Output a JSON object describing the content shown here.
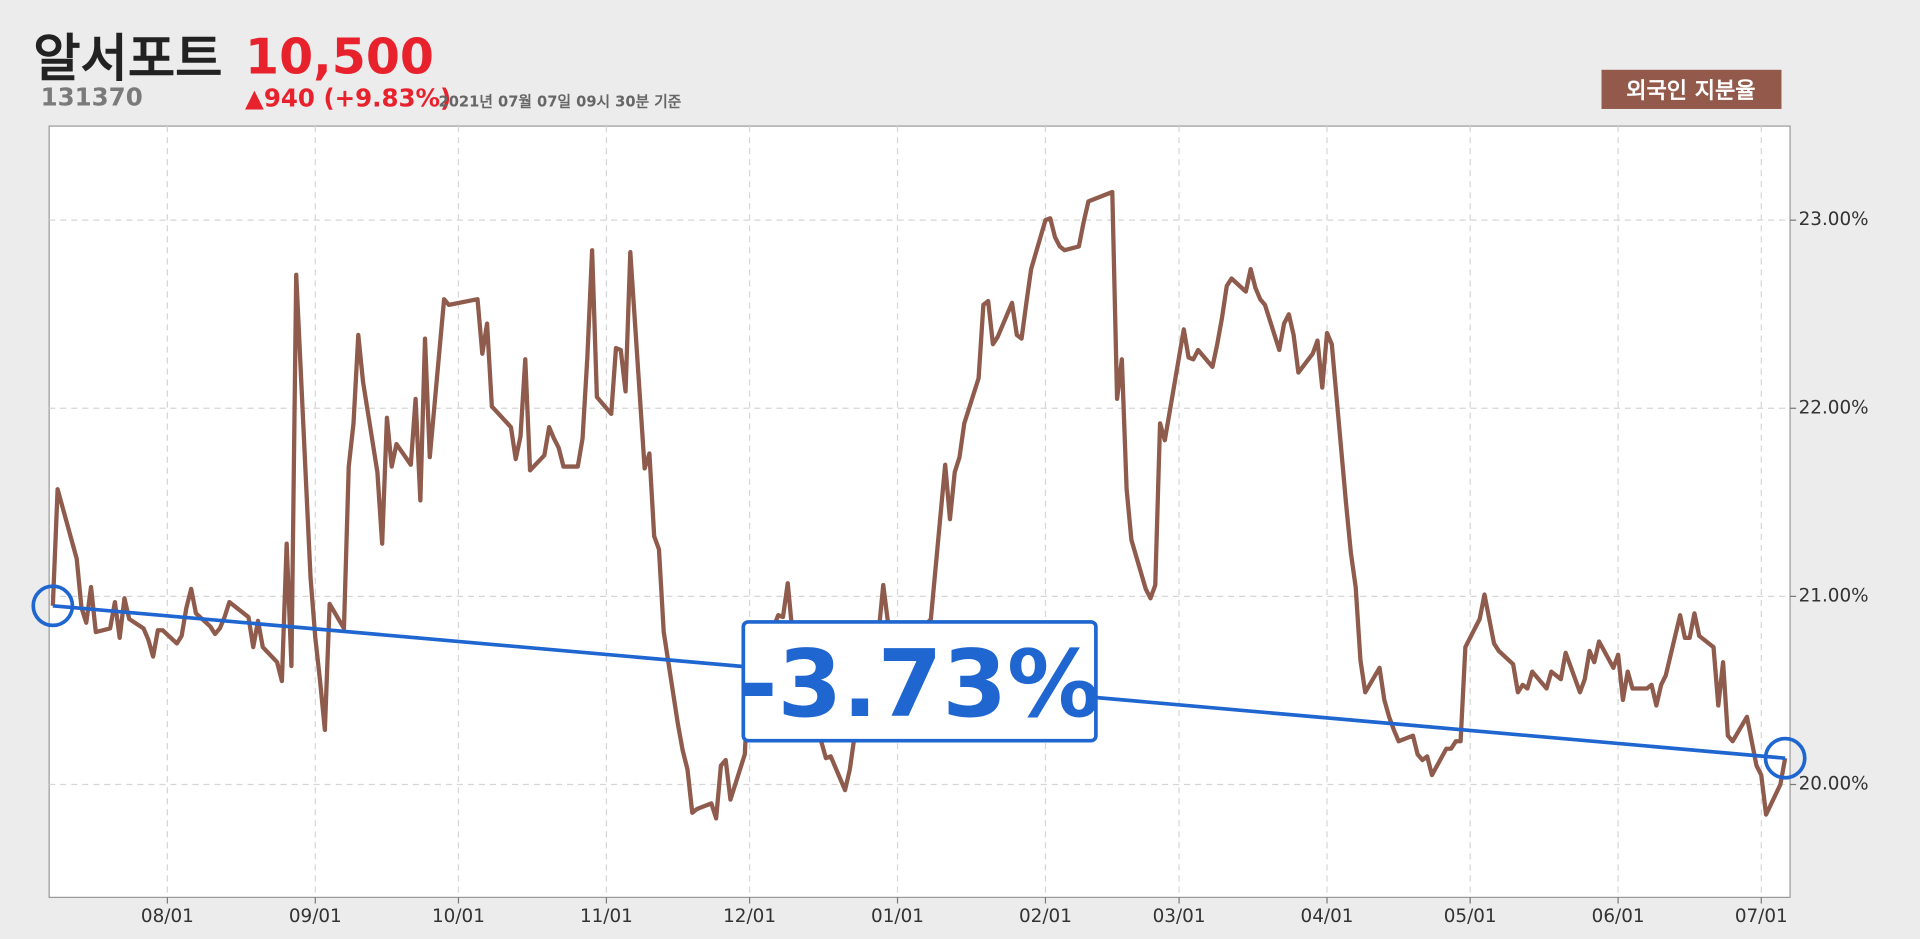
{
  "header": {
    "name": "알서포트",
    "price": "10,500",
    "code": "131370",
    "change": "▲940 (+9.83%)",
    "timestamp": "2021년 07월 07일 09시 30분 기준",
    "button": "외국인 지분율"
  },
  "chart_data": {
    "type": "line",
    "annotation": "-3.73%",
    "x": [
      "07/08",
      "07/09",
      "07/13",
      "07/14",
      "07/15",
      "07/16",
      "07/17",
      "07/20",
      "07/21",
      "07/22",
      "07/23",
      "07/24",
      "07/27",
      "07/28",
      "07/29",
      "07/30",
      "07/31",
      "08/03",
      "08/04",
      "08/05",
      "08/06",
      "08/07",
      "08/10",
      "08/11",
      "08/12",
      "08/13",
      "08/14",
      "08/18",
      "08/19",
      "08/20",
      "08/21",
      "08/24",
      "08/25",
      "08/26",
      "08/27",
      "08/28",
      "08/31",
      "09/01",
      "09/02",
      "09/03",
      "09/04",
      "09/07",
      "09/08",
      "09/09",
      "09/10",
      "09/11",
      "09/14",
      "09/15",
      "09/16",
      "09/17",
      "09/18",
      "09/21",
      "09/22",
      "09/23",
      "09/24",
      "09/25",
      "09/28",
      "09/29",
      "10/05",
      "10/06",
      "10/07",
      "10/08",
      "10/12",
      "10/13",
      "10/14",
      "10/15",
      "10/16",
      "10/19",
      "10/20",
      "10/21",
      "10/22",
      "10/23",
      "10/26",
      "10/27",
      "10/28",
      "10/29",
      "10/30",
      "11/02",
      "11/03",
      "11/04",
      "11/05",
      "11/06",
      "11/09",
      "11/10",
      "11/11",
      "11/12",
      "11/13",
      "11/16",
      "11/17",
      "11/18",
      "11/19",
      "11/20",
      "11/23",
      "11/24",
      "11/25",
      "11/26",
      "11/27",
      "11/30",
      "12/01",
      "12/02",
      "12/03",
      "12/04",
      "12/07",
      "12/08",
      "12/09",
      "12/10",
      "12/11",
      "12/14",
      "12/15",
      "12/16",
      "12/17",
      "12/18",
      "12/21",
      "12/22",
      "12/23",
      "12/24",
      "12/28",
      "12/29",
      "12/30",
      "01/04",
      "01/05",
      "01/06",
      "01/07",
      "01/08",
      "01/11",
      "01/12",
      "01/13",
      "01/14",
      "01/15",
      "01/18",
      "01/19",
      "01/20",
      "01/21",
      "01/22",
      "01/25",
      "01/26",
      "01/27",
      "01/28",
      "01/29",
      "02/01",
      "02/02",
      "02/03",
      "02/04",
      "02/05",
      "02/08",
      "02/09",
      "02/10",
      "02/15",
      "02/16",
      "02/17",
      "02/18",
      "02/19",
      "02/22",
      "02/23",
      "02/24",
      "02/25",
      "02/26",
      "03/02",
      "03/03",
      "03/04",
      "03/05",
      "03/08",
      "03/09",
      "03/10",
      "03/11",
      "03/12",
      "03/15",
      "03/16",
      "03/17",
      "03/18",
      "03/19",
      "03/22",
      "03/23",
      "03/24",
      "03/25",
      "03/26",
      "03/29",
      "03/30",
      "03/31",
      "04/01",
      "04/02",
      "04/05",
      "04/06",
      "04/07",
      "04/08",
      "04/09",
      "04/12",
      "04/13",
      "04/14",
      "04/15",
      "04/16",
      "04/19",
      "04/20",
      "04/21",
      "04/22",
      "04/23",
      "04/26",
      "04/27",
      "04/28",
      "04/29",
      "04/30",
      "05/03",
      "05/04",
      "05/06",
      "05/07",
      "05/10",
      "05/11",
      "05/12",
      "05/13",
      "05/14",
      "05/17",
      "05/18",
      "05/20",
      "05/21",
      "05/24",
      "05/25",
      "05/26",
      "05/27",
      "05/28",
      "05/31",
      "06/01",
      "06/02",
      "06/03",
      "06/04",
      "06/07",
      "06/08",
      "06/09",
      "06/10",
      "06/11",
      "06/14",
      "06/15",
      "06/16",
      "06/17",
      "06/18",
      "06/21",
      "06/22",
      "06/23",
      "06/24",
      "06/25",
      "06/28",
      "06/29",
      "06/30",
      "07/01",
      "07/02",
      "07/05",
      "07/06"
    ],
    "series": [
      {
        "color": "#8f5b4c",
        "values": [
          20.95,
          21.57,
          21.2,
          20.94,
          20.86,
          21.05,
          20.81,
          20.83,
          20.97,
          20.78,
          20.99,
          20.88,
          20.83,
          20.77,
          20.68,
          20.82,
          20.82,
          20.75,
          20.79,
          20.94,
          21.04,
          20.91,
          20.84,
          20.8,
          20.83,
          20.89,
          20.97,
          20.89,
          20.73,
          20.87,
          20.73,
          20.65,
          20.55,
          21.28,
          20.63,
          22.71,
          21.1,
          20.78,
          20.55,
          20.29,
          20.96,
          20.83,
          21.69,
          21.92,
          22.39,
          22.14,
          21.66,
          21.28,
          21.95,
          21.69,
          21.81,
          21.7,
          22.05,
          21.51,
          22.37,
          21.74,
          22.58,
          22.55,
          22.58,
          22.29,
          22.45,
          22.01,
          21.9,
          21.73,
          21.85,
          22.26,
          21.67,
          21.75,
          21.9,
          21.84,
          21.79,
          21.69,
          21.69,
          21.84,
          22.27,
          22.84,
          22.06,
          21.97,
          22.32,
          22.31,
          22.09,
          22.83,
          21.68,
          21.76,
          21.32,
          21.25,
          20.81,
          20.32,
          20.18,
          20.08,
          19.85,
          19.87,
          19.9,
          19.82,
          20.1,
          20.13,
          19.92,
          20.16,
          20.65,
          20.8,
          20.75,
          20.7,
          20.9,
          20.89,
          21.07,
          20.8,
          20.6,
          20.45,
          20.3,
          20.23,
          20.14,
          20.15,
          19.97,
          20.08,
          20.26,
          20.5,
          20.8,
          21.06,
          20.86,
          20.7,
          20.6,
          20.75,
          20.85,
          20.88,
          21.7,
          21.41,
          21.66,
          21.74,
          21.92,
          22.16,
          22.55,
          22.57,
          22.34,
          22.38,
          22.56,
          22.39,
          22.37,
          22.56,
          22.74,
          23.0,
          23.01,
          22.91,
          22.86,
          22.84,
          22.86,
          22.99,
          23.1,
          23.15,
          22.05,
          22.26,
          21.57,
          21.3,
          21.04,
          20.99,
          21.06,
          21.92,
          21.83,
          22.42,
          22.27,
          22.26,
          22.31,
          22.22,
          22.34,
          22.48,
          22.65,
          22.69,
          22.62,
          22.74,
          22.64,
          22.58,
          22.55,
          22.31,
          22.45,
          22.5,
          22.39,
          22.19,
          22.29,
          22.36,
          22.11,
          22.4,
          22.34,
          21.49,
          21.23,
          21.05,
          20.66,
          20.49,
          20.62,
          20.45,
          20.36,
          20.29,
          20.23,
          20.26,
          20.16,
          20.13,
          20.15,
          20.05,
          20.19,
          20.19,
          20.23,
          20.23,
          20.73,
          20.88,
          21.01,
          20.75,
          20.71,
          20.64,
          20.49,
          20.53,
          20.51,
          20.6,
          20.51,
          20.6,
          20.56,
          20.7,
          20.49,
          20.56,
          20.71,
          20.65,
          20.76,
          20.62,
          20.69,
          20.45,
          20.6,
          20.51,
          20.51,
          20.53,
          20.42,
          20.53,
          20.58,
          20.9,
          20.78,
          20.78,
          20.91,
          20.79,
          20.73,
          20.42,
          20.65,
          20.26,
          20.23,
          20.36,
          20.23,
          20.1,
          20.05,
          19.84,
          20.0,
          20.14
        ]
      }
    ],
    "trend_color": "#1f66d1",
    "ylim": [
      19.4,
      23.5
    ],
    "yticks": [
      {
        "value": 20,
        "label": "20.00%"
      },
      {
        "value": 21,
        "label": "21.00%"
      },
      {
        "value": 22,
        "label": "22.00%"
      },
      {
        "value": 23,
        "label": "23.00%"
      }
    ],
    "xticks": [
      "08/01",
      "09/01",
      "10/01",
      "11/01",
      "12/01",
      "01/01",
      "02/01",
      "03/01",
      "04/01",
      "05/01",
      "06/01",
      "07/01"
    ],
    "grid": true
  }
}
